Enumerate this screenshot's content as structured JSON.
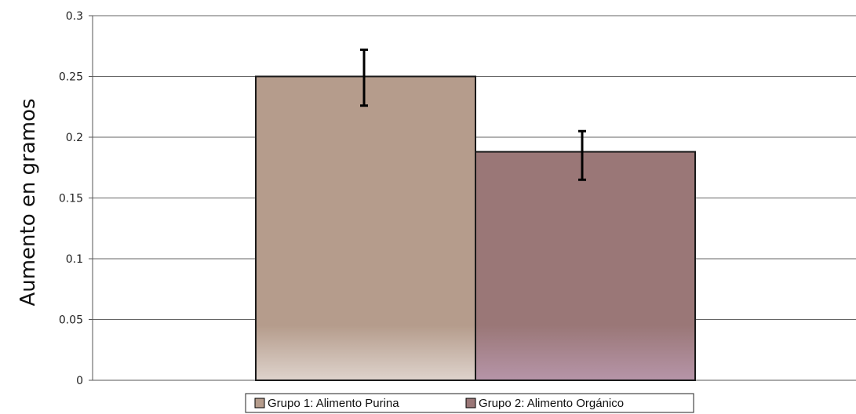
{
  "chart_data": {
    "type": "bar",
    "title": "",
    "xlabel": "",
    "ylabel": "Aumento en gramos",
    "ylim": [
      0,
      0.3
    ],
    "yticks": [
      "0",
      "0.05",
      "0.1",
      "0.15",
      "0.2",
      "0.25",
      "0.3"
    ],
    "grid": true,
    "legend_position": "bottom",
    "series": [
      {
        "name": "Grupo 1: Alimento Purina",
        "value": 0.25,
        "error_low": 0.226,
        "error_high": 0.272,
        "color": "#b59c8c"
      },
      {
        "name": "Grupo 2: Alimento Orgánico",
        "value": 0.188,
        "error_low": 0.165,
        "error_high": 0.205,
        "color": "#9a7777"
      }
    ]
  }
}
